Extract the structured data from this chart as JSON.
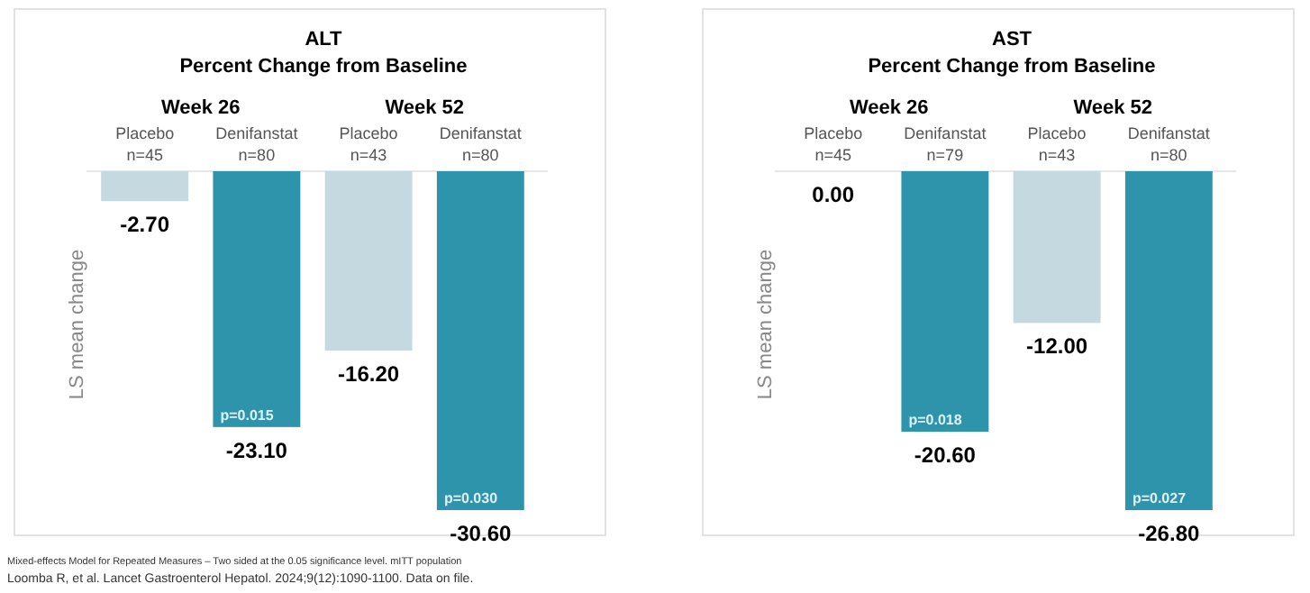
{
  "chart_data": [
    {
      "type": "bar",
      "title": "ALT",
      "subtitle": "Percent Change from Baseline",
      "ylabel": "LS mean change",
      "categories": [
        "Placebo\nn=45",
        "Denifanstat\nn=80",
        "Placebo\nn=43",
        "Denifanstat\nn=80"
      ],
      "values": [
        -2.7,
        -23.1,
        -16.2,
        -30.6
      ],
      "colors": [
        "#c5d9e0",
        "#2e94ab",
        "#c5d9e0",
        "#2e94ab"
      ],
      "value_labels": [
        "-2.70",
        "-23.10",
        "-16.20",
        "-30.60"
      ],
      "annotations": [
        "Week 26",
        "Week 52",
        "Mixed-effects Model for Repeated Measures – Two sided at the 0.05 significance level. mITT population",
        "Loomba R, et al. Lancet Gastroenterol Hepatol. 2024;9(12):1090-1100. Data on file.",
        {
          "text": "p=0.015",
          "y": -23.1
        },
        {
          "text": "p=0.030",
          "y": -30.6
        }
      ]
    },
    {
      "type": "bar",
      "title": "AST",
      "subtitle": "Percent Change from Baseline",
      "ylabel": "LS mean change",
      "categories": [
        "Placebo\nn=45",
        "Denifanstat\nn=79",
        "Placebo\nn=43",
        "Denifanstat\nn=80"
      ],
      "values": [
        0,
        -20.6,
        -12,
        -26.8
      ],
      "colors": [
        "#c5d9e0",
        "#2e94ab",
        "#c5d9e0",
        "#2e94ab"
      ],
      "value_labels": [
        "0.00",
        "-20.60",
        "-12.00",
        "-26.80"
      ],
      "annotations": [
        "Week 26",
        "Week 52",
        {
          "text": "p=0.018",
          "x": "Denifanstat\nn=79",
          "y": -20.6
        },
        {
          "text": "p=0.027",
          "x": "Denifanstat\nn=80",
          "y": -26.8
        }
      ]
    }
  ]
}
